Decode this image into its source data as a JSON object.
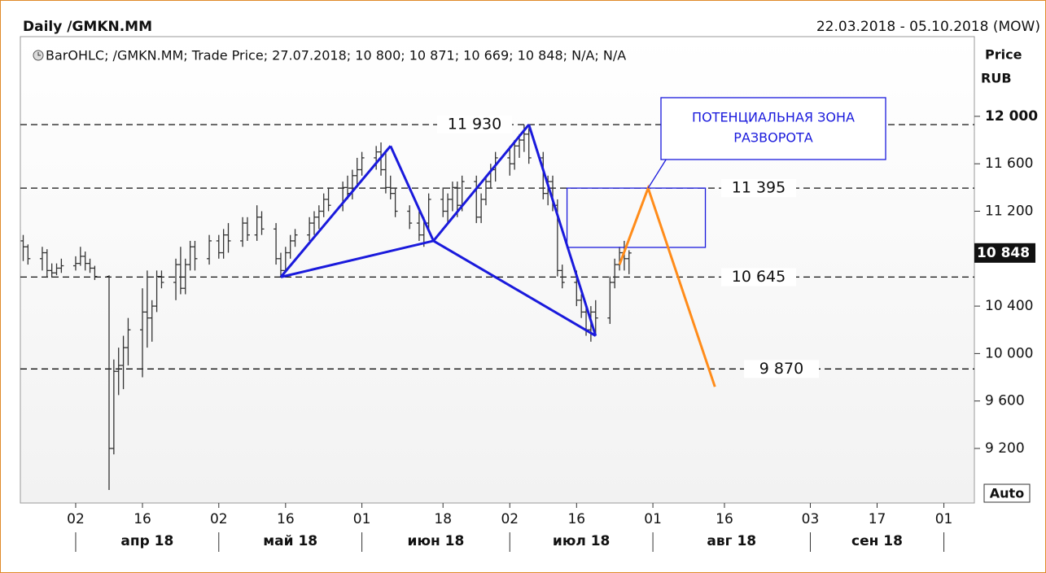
{
  "chart_data": {
    "type": "ohlc",
    "title": "Daily /GMKN.MM",
    "date_range": "22.03.2018 - 05.10.2018 (MOW)",
    "legend_text": "BarOHLC; /GMKN.MM; Trade Price; 27.07.2018; 10 800; 10 871; 10 669; 10 848; N/A; N/A",
    "y_axis_label": [
      "Price",
      "RUB"
    ],
    "auto_button": "Auto",
    "color": "#333333",
    "xlim": [
      "2018-03-22",
      "2018-10-05"
    ],
    "ylim": [
      8740,
      12672
    ],
    "yticks": [
      {
        "value": 12000,
        "label": "12 000"
      },
      {
        "value": 11600,
        "label": "11 600"
      },
      {
        "value": 11200,
        "label": "11 200"
      },
      {
        "value": 10400,
        "label": "10 400"
      },
      {
        "value": 10000,
        "label": "10 000"
      },
      {
        "value": 9600,
        "label": "9 600"
      },
      {
        "value": 9200,
        "label": "9 200"
      }
    ],
    "last_price": {
      "value": 10848,
      "label": "10 848"
    },
    "xticks": [
      {
        "value": "2018-04-02",
        "label": "02"
      },
      {
        "value": "2018-04-16",
        "label": "16"
      },
      {
        "value": "2018-05-02",
        "label": "02"
      },
      {
        "value": "2018-05-16",
        "label": "16"
      },
      {
        "value": "2018-06-01",
        "label": "01"
      },
      {
        "value": "2018-06-18",
        "label": "18"
      },
      {
        "value": "2018-07-02",
        "label": "02"
      },
      {
        "value": "2018-07-16",
        "label": "16"
      },
      {
        "value": "2018-08-01",
        "label": "01"
      },
      {
        "value": "2018-08-16",
        "label": "16"
      },
      {
        "value": "2018-09-03",
        "label": "03"
      },
      {
        "value": "2018-09-17",
        "label": "17"
      },
      {
        "value": "2018-10-01",
        "label": "01"
      }
    ],
    "month_separators": [
      "2018-04-02",
      "2018-05-02",
      "2018-06-01",
      "2018-07-02",
      "2018-08-01",
      "2018-09-03",
      "2018-10-01"
    ],
    "months": [
      "апр 18",
      "май 18",
      "июн 18",
      "июл 18",
      "авг 18",
      "сен 18"
    ],
    "x": [
      "2018-03-22",
      "2018-03-23",
      "2018-03-26",
      "2018-03-27",
      "2018-03-28",
      "2018-03-29",
      "2018-03-30",
      "2018-04-02",
      "2018-04-03",
      "2018-04-04",
      "2018-04-05",
      "2018-04-06",
      "2018-04-09",
      "2018-04-10",
      "2018-04-11",
      "2018-04-12",
      "2018-04-13",
      "2018-04-16",
      "2018-04-17",
      "2018-04-18",
      "2018-04-19",
      "2018-04-20",
      "2018-04-23",
      "2018-04-24",
      "2018-04-25",
      "2018-04-26",
      "2018-04-27",
      "2018-04-30",
      "2018-05-02",
      "2018-05-03",
      "2018-05-04",
      "2018-05-07",
      "2018-05-08",
      "2018-05-10",
      "2018-05-11",
      "2018-05-14",
      "2018-05-15",
      "2018-05-16",
      "2018-05-17",
      "2018-05-18",
      "2018-05-21",
      "2018-05-22",
      "2018-05-23",
      "2018-05-24",
      "2018-05-25",
      "2018-05-28",
      "2018-05-29",
      "2018-05-30",
      "2018-05-31",
      "2018-06-01",
      "2018-06-04",
      "2018-06-05",
      "2018-06-06",
      "2018-06-07",
      "2018-06-08",
      "2018-06-11",
      "2018-06-13",
      "2018-06-14",
      "2018-06-15",
      "2018-06-18",
      "2018-06-19",
      "2018-06-20",
      "2018-06-21",
      "2018-06-22",
      "2018-06-25",
      "2018-06-26",
      "2018-06-27",
      "2018-06-28",
      "2018-06-29",
      "2018-07-02",
      "2018-07-03",
      "2018-07-04",
      "2018-07-05",
      "2018-07-06",
      "2018-07-09",
      "2018-07-10",
      "2018-07-11",
      "2018-07-12",
      "2018-07-13",
      "2018-07-16",
      "2018-07-17",
      "2018-07-18",
      "2018-07-19",
      "2018-07-20",
      "2018-07-23",
      "2018-07-24",
      "2018-07-25",
      "2018-07-26",
      "2018-07-27"
    ],
    "open": [
      10950,
      10900,
      10800,
      10850,
      10700,
      10680,
      10720,
      10740,
      10760,
      10820,
      10760,
      10720,
      10650,
      9200,
      9850,
      9900,
      10050,
      10200,
      10350,
      10300,
      10400,
      10650,
      10600,
      10750,
      10550,
      10750,
      10900,
      10800,
      10950,
      10850,
      11000,
      10950,
      11100,
      11000,
      11150,
      11050,
      10800,
      10700,
      10850,
      10950,
      11000,
      11100,
      11150,
      11200,
      11300,
      11250,
      11400,
      11350,
      11500,
      11550,
      11650,
      11700,
      11550,
      11400,
      11350,
      11200,
      11100,
      11000,
      11100,
      11300,
      11200,
      11300,
      11400,
      11250,
      11450,
      11150,
      11300,
      11450,
      11550,
      11650,
      11600,
      11750,
      11800,
      11850,
      11650,
      11350,
      11450,
      11250,
      10700,
      10600,
      10450,
      10350,
      10200,
      10350,
      10300,
      10600,
      10750,
      10850,
      10800
    ],
    "high": [
      11000,
      10920,
      10900,
      10880,
      10760,
      10760,
      10800,
      10820,
      10900,
      10860,
      10800,
      10740,
      10660,
      9950,
      10050,
      10150,
      10300,
      10550,
      10700,
      10450,
      10700,
      10700,
      10800,
      10900,
      10800,
      10950,
      10950,
      11000,
      11000,
      11050,
      11100,
      11150,
      11150,
      11250,
      11200,
      11100,
      10850,
      10900,
      11000,
      11050,
      11150,
      11200,
      11250,
      11350,
      11400,
      11450,
      11500,
      11550,
      11650,
      11700,
      11750,
      11780,
      11700,
      11500,
      11400,
      11250,
      11200,
      11150,
      11350,
      11400,
      11350,
      11450,
      11450,
      11500,
      11500,
      11350,
      11500,
      11600,
      11700,
      11750,
      11800,
      11850,
      11930,
      11900,
      11700,
      11500,
      11500,
      11300,
      10750,
      10700,
      10500,
      10400,
      10400,
      10450,
      10650,
      10800,
      10900,
      10950,
      10871
    ],
    "low": [
      10780,
      10750,
      10700,
      10640,
      10640,
      10660,
      10680,
      10700,
      10740,
      10700,
      10680,
      10620,
      8850,
      9150,
      9650,
      9700,
      9900,
      9800,
      10050,
      10100,
      10350,
      10550,
      10450,
      10500,
      10500,
      10700,
      10700,
      10750,
      10800,
      10800,
      10850,
      10900,
      10950,
      10950,
      11000,
      10750,
      10645,
      10680,
      10800,
      10900,
      10950,
      11000,
      11050,
      11150,
      11200,
      11200,
      11300,
      11300,
      11400,
      11500,
      11550,
      11500,
      11350,
      11300,
      11150,
      11050,
      10950,
      10900,
      11050,
      11150,
      11100,
      11200,
      11150,
      11200,
      11100,
      11100,
      11250,
      11400,
      11450,
      11500,
      11550,
      11650,
      11700,
      11600,
      11300,
      11250,
      11200,
      10650,
      10550,
      10400,
      10300,
      10150,
      10100,
      10150,
      10250,
      10550,
      10700,
      10700,
      10669
    ],
    "close": [
      10900,
      10800,
      10850,
      10700,
      10680,
      10720,
      10740,
      10760,
      10820,
      10760,
      10720,
      10650,
      9200,
      9850,
      9900,
      10050,
      10200,
      10350,
      10300,
      10400,
      10650,
      10600,
      10750,
      10550,
      10750,
      10900,
      10800,
      10950,
      10850,
      11000,
      10950,
      11100,
      11000,
      11150,
      11050,
      10800,
      10700,
      10850,
      10950,
      11000,
      11100,
      11150,
      11200,
      11300,
      11250,
      11400,
      11350,
      11500,
      11550,
      11650,
      11700,
      11550,
      11400,
      11350,
      11200,
      11100,
      11000,
      11100,
      11300,
      11200,
      11300,
      11400,
      11250,
      11450,
      11150,
      11300,
      11450,
      11550,
      11650,
      11600,
      11750,
      11800,
      11850,
      11650,
      11350,
      11450,
      11250,
      10700,
      10600,
      10450,
      10350,
      10200,
      10350,
      10300,
      10600,
      10750,
      10850,
      10800,
      10848
    ],
    "levels": [
      {
        "value": 11930,
        "label": "11 930"
      },
      {
        "value": 11395,
        "label": "11 395"
      },
      {
        "value": 10645,
        "label": "10 645"
      },
      {
        "value": 9870,
        "label": "9 870"
      }
    ],
    "pattern_color": "#1a1adc",
    "pattern_lines": [
      {
        "x": [
          "2018-05-15",
          "2018-06-07"
        ],
        "y": [
          10645,
          11750
        ]
      },
      {
        "x": [
          "2018-06-07",
          "2018-06-16"
        ],
        "y": [
          11750,
          10950
        ]
      },
      {
        "x": [
          "2018-06-16",
          "2018-07-06"
        ],
        "y": [
          10950,
          11930
        ]
      },
      {
        "x": [
          "2018-07-06",
          "2018-07-20"
        ],
        "y": [
          11930,
          10150
        ]
      },
      {
        "x": [
          "2018-05-15",
          "2018-06-16"
        ],
        "y": [
          10645,
          10950
        ]
      },
      {
        "x": [
          "2018-06-16",
          "2018-07-20"
        ],
        "y": [
          10950,
          10150
        ]
      }
    ],
    "zone": {
      "x": [
        "2018-07-14",
        "2018-08-12"
      ],
      "y": [
        11395,
        10895
      ]
    },
    "projection": {
      "color": "#ff8c1a",
      "x": [
        "2018-07-25",
        "2018-07-31",
        "2018-08-14"
      ],
      "y": [
        10750,
        11395,
        9720
      ]
    },
    "annotation": [
      "ПОТЕНЦИАЛЬНАЯ ЗОНА",
      "РАЗВОРОТА"
    ]
  }
}
